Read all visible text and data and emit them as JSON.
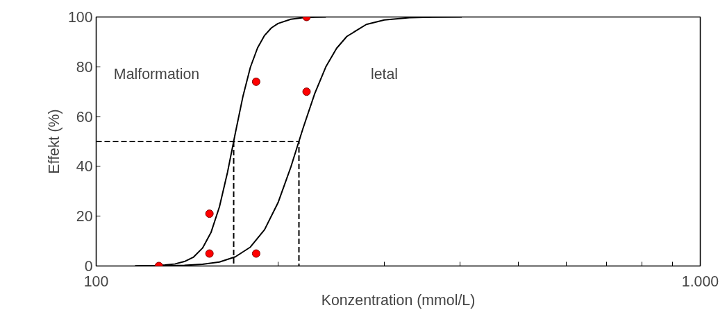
{
  "chart_data": {
    "type": "line",
    "xlabel": "Konzentration (mmol/L)",
    "ylabel": "Effekt (%)",
    "log": "x",
    "grid": false,
    "xlim": [
      100,
      1000
    ],
    "ylim": [
      0,
      100
    ],
    "xticks": [
      100,
      {
        "value": 200,
        "label": null
      },
      {
        "value": 300,
        "label": null
      },
      {
        "value": 400,
        "label": null
      },
      {
        "value": 500,
        "label": null
      },
      {
        "value": 600,
        "label": null
      },
      {
        "value": 700,
        "label": null
      },
      {
        "value": 800,
        "label": null
      },
      {
        "value": 900,
        "label": null
      },
      {
        "value": 1000,
        "label": "1.000"
      }
    ],
    "yticks": [
      0,
      20,
      40,
      60,
      80,
      100
    ],
    "annotations": [
      "Malformation",
      "letal"
    ],
    "series": [
      {
        "color": "#000000",
        "line_style": "solid",
        "x": [
          116,
          125,
          130,
          135,
          140,
          145,
          150,
          155,
          160,
          165,
          170,
          175,
          180,
          185,
          190,
          195,
          200,
          210,
          220,
          230,
          240
        ],
        "values": [
          0,
          0.2,
          0.4,
          0.8,
          1.8,
          3.6,
          7.2,
          13.6,
          23.8,
          37.7,
          53.5,
          68.2,
          79.8,
          87.6,
          92.6,
          95.6,
          97.4,
          99.1,
          99.7,
          99.9,
          100
        ]
      },
      {
        "color": "#000000",
        "line_style": "solid",
        "x": [
          116,
          130,
          140,
          150,
          160,
          170,
          180,
          190,
          200,
          210,
          220,
          230,
          240,
          250,
          260,
          280,
          300,
          330,
          360,
          403
        ],
        "values": [
          0,
          0.1,
          0.3,
          0.7,
          1.6,
          3.7,
          7.6,
          14.6,
          25.4,
          39.7,
          55.3,
          69.2,
          80,
          87.4,
          92.2,
          97,
          98.8,
          99.7,
          99.9,
          100
        ]
      },
      {
        "color": "#000000",
        "line_style": "dashed",
        "x": [
          100,
          216.6,
          216.6
        ],
        "values": [
          50,
          50,
          0
        ]
      },
      {
        "color": "#000000",
        "line_style": "dashed",
        "x": [
          168.9,
          168.9
        ],
        "values": [
          50,
          0
        ]
      },
      {
        "type": "scatter",
        "color": "#ff0000",
        "marker": "circle",
        "x": [
          127,
          154,
          154,
          184,
          184,
          223,
          223
        ],
        "values": [
          0,
          21,
          5,
          74,
          5,
          100,
          70
        ]
      }
    ]
  }
}
